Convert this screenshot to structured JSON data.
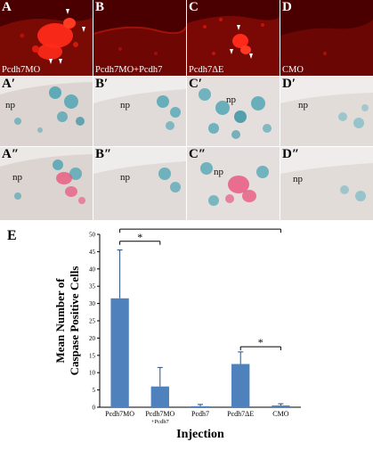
{
  "row1": [
    {
      "letter": "A",
      "condition": "Pcdh7MO"
    },
    {
      "letter": "B",
      "condition": "Pcdh7MO+Pcdh7"
    },
    {
      "letter": "C",
      "condition": "Pcdh7ΔE"
    },
    {
      "letter": "D",
      "condition": "CMO"
    }
  ],
  "row2": [
    {
      "letter": "A′",
      "tissue": "np"
    },
    {
      "letter": "B′",
      "tissue": "np"
    },
    {
      "letter": "C′",
      "tissue": "np"
    },
    {
      "letter": "D′",
      "tissue": "np"
    }
  ],
  "row3": [
    {
      "letter": "A″",
      "tissue": "np"
    },
    {
      "letter": "B″",
      "tissue": "np"
    },
    {
      "letter": "C″",
      "tissue": "np"
    },
    {
      "letter": "D″",
      "tissue": "np"
    }
  ],
  "colors": {
    "fluor_bg": "#5a0000",
    "fluor_signal": "#ff2a1a",
    "tissue_bg": "#ece8e6",
    "blue_stain": "#3f9fb0",
    "red_stain": "#e8507a",
    "bar": "#4f81bd"
  },
  "chart_data": {
    "panel_letter": "E",
    "type": "bar",
    "categories": [
      "Pcdh7MO",
      "Pcdh7MO\n+Pcdh7",
      "Pcdh7",
      "Pcdh7ΔE",
      "CMO"
    ],
    "values": [
      31.5,
      6,
      0.3,
      12.5,
      0.5
    ],
    "errors": [
      14,
      5.5,
      0.5,
      3.5,
      0.5
    ],
    "ylabel_lines": [
      "Mean Number of",
      "Caspase Positive Cells"
    ],
    "xlabel": "Injection",
    "ylim": [
      0,
      50
    ],
    "yticks": [
      0,
      5,
      10,
      15,
      20,
      25,
      30,
      35,
      40,
      45,
      50
    ],
    "significance": [
      {
        "from": 0,
        "to": 1,
        "label": "*"
      },
      {
        "from": 0,
        "to": 4,
        "label": "*"
      },
      {
        "from": 3,
        "to": 4,
        "label": "*"
      }
    ],
    "grid": false,
    "legend": "none"
  }
}
